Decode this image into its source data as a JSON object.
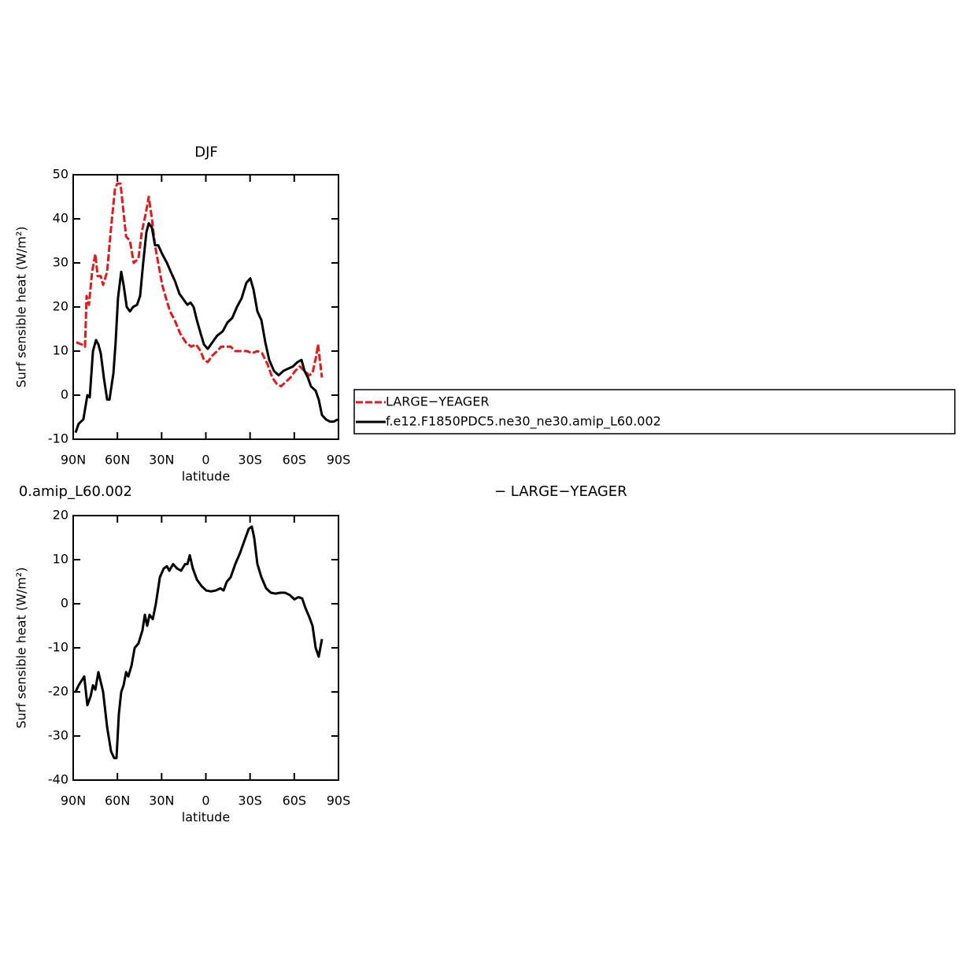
{
  "chart_data": [
    {
      "type": "line",
      "title": "DJF",
      "ylabel": "Surf sensible heat (W/m²)",
      "xlabel": "latitude",
      "xlim": [
        90,
        -90
      ],
      "xticks": [
        {
          "value": 90,
          "label": "90N"
        },
        {
          "value": 60,
          "label": "60N"
        },
        {
          "value": 30,
          "label": "30N"
        },
        0,
        {
          "value": -30,
          "label": "30S"
        },
        {
          "value": -60,
          "label": "60S"
        },
        {
          "value": -90,
          "label": "90S"
        }
      ],
      "ylim": [
        -10,
        50
      ],
      "yticks": [
        -10,
        0,
        10,
        20,
        30,
        40,
        50
      ],
      "series": [
        {
          "name": "LARGE−YEAGER",
          "color": "#e31a1c",
          "style": "dashed",
          "x": [
            87.9,
            84.1,
            82.0,
            80.9,
            79.3,
            77.2,
            75.0,
            73.4,
            71.3,
            69.7,
            67.0,
            64.3,
            61.6,
            60.0,
            57.9,
            55.7,
            54.1,
            51.5,
            48.9,
            45.7,
            43.5,
            40.9,
            38.7,
            36.6,
            34.5,
            32.3,
            29.6,
            27.0,
            24.3,
            21.1,
            17.4,
            13.6,
            9.9,
            6.7,
            3.5,
            1.3,
            -1.3,
            -4.5,
            -7.7,
            -10.4,
            -13.6,
            -16.8,
            -20.0,
            -24.3,
            -28.0,
            -31.2,
            -35.0,
            -38.2,
            -41.9,
            -45.1,
            -48.3,
            -51.0,
            -54.2,
            -57.4,
            -60.6,
            -63.8,
            -67.0,
            -70.2,
            -72.4,
            -75.0,
            -76.1,
            -77.7,
            -78.8
          ],
          "values": [
            12,
            11.5,
            11,
            22.5,
            20.5,
            28,
            32,
            27,
            27,
            25,
            28,
            38,
            47,
            48,
            48,
            41,
            36,
            35,
            30,
            31,
            37,
            41,
            45,
            40,
            34,
            30,
            25,
            22,
            19,
            17,
            14,
            12,
            11,
            11.5,
            10,
            8,
            7.5,
            9,
            10,
            11,
            11,
            11,
            10,
            10,
            10,
            9.5,
            10,
            9.5,
            7,
            4,
            2.5,
            2,
            3,
            4,
            5.5,
            6.5,
            5.5,
            4.5,
            5,
            9,
            11.5,
            7,
            4
          ]
        },
        {
          "name": "f.e12.F1850PDC5.ne30_ne30.amip_L60.002",
          "color": "#000000",
          "style": "solid",
          "x": [
            88.4,
            86.3,
            83.1,
            80.4,
            78.8,
            76.6,
            74.5,
            72.9,
            71.3,
            69.2,
            67.0,
            65.4,
            62.7,
            61.2,
            59.6,
            57.4,
            55.8,
            53.7,
            51.5,
            49.4,
            46.7,
            44.6,
            42.5,
            40.3,
            38.7,
            36.6,
            34.5,
            32.3,
            29.6,
            26.4,
            23.8,
            21.1,
            17.9,
            14.7,
            12.5,
            10.4,
            8.3,
            6.1,
            3.5,
            1.3,
            -1.3,
            -4.5,
            -7.7,
            -11.5,
            -14.7,
            -17.9,
            -21.1,
            -24.3,
            -27.5,
            -30.2,
            -32.3,
            -35.0,
            -37.7,
            -40.3,
            -43.0,
            -46.2,
            -49.4,
            -52.6,
            -55.8,
            -59.0,
            -62.2,
            -64.9,
            -67.0,
            -69.2,
            -71.3,
            -74.5,
            -76.6,
            -78.8,
            -81.5,
            -84.1,
            -86.8,
            -89.5
          ],
          "values": [
            -8.5,
            -6.5,
            -5.5,
            0,
            -0.5,
            10,
            12.5,
            11.5,
            9.5,
            4,
            -1,
            -1,
            5,
            12,
            22,
            28,
            25,
            20,
            19,
            20,
            20.5,
            22.5,
            30,
            37,
            39,
            38,
            34,
            34,
            32,
            30,
            28,
            26,
            23,
            21.5,
            20.5,
            21,
            20,
            17,
            14,
            11.5,
            10.5,
            12,
            13.5,
            14.5,
            16.5,
            17.5,
            20,
            22,
            25.5,
            26.5,
            24,
            19,
            17,
            12,
            8,
            5.5,
            4.5,
            5.5,
            6,
            6.5,
            7.5,
            8,
            5.5,
            4,
            2,
            1,
            -1,
            -4.5,
            -5.5,
            -6,
            -6,
            -5.5
          ]
        }
      ]
    },
    {
      "type": "line",
      "title_parts": [
        "0.amip_L60.002",
        "− LARGE−YEAGER"
      ],
      "ylabel": "Surf sensible heat (W/m²)",
      "xlabel": "latitude",
      "xlim": [
        90,
        -90
      ],
      "xticks": [
        {
          "value": 90,
          "label": "90N"
        },
        {
          "value": 60,
          "label": "60N"
        },
        {
          "value": 30,
          "label": "30N"
        },
        0,
        {
          "value": -30,
          "label": "30S"
        },
        {
          "value": -60,
          "label": "60S"
        },
        {
          "value": -90,
          "label": "90S"
        }
      ],
      "ylim": [
        -40,
        20
      ],
      "yticks": [
        -40,
        -30,
        -20,
        -10,
        0,
        10,
        20
      ],
      "series": [
        {
          "color": "#000000",
          "style": "solid",
          "x": [
            88.4,
            86.3,
            82.5,
            80.4,
            78.2,
            76.6,
            75.0,
            72.9,
            69.7,
            67.0,
            64.3,
            62.2,
            60.6,
            59.0,
            57.4,
            55.8,
            54.1,
            52.6,
            50.4,
            48.3,
            45.7,
            43.0,
            41.4,
            39.8,
            38.2,
            36.0,
            33.9,
            31.2,
            28.6,
            26.4,
            24.8,
            22.2,
            19.5,
            16.8,
            14.1,
            12.5,
            10.9,
            8.8,
            6.1,
            2.9,
            -0.3,
            -3.5,
            -6.7,
            -9.9,
            -12.0,
            -14.2,
            -16.8,
            -20.0,
            -23.2,
            -26.4,
            -29.1,
            -31.2,
            -32.8,
            -35.0,
            -37.7,
            -40.9,
            -44.1,
            -47.3,
            -50.5,
            -53.7,
            -56.9,
            -60.1,
            -62.8,
            -65.4,
            -67.6,
            -70.2,
            -72.4,
            -74.5,
            -76.6,
            -78.8
          ],
          "values": [
            -20,
            -18.5,
            -16.5,
            -23,
            -21,
            -18.5,
            -19.5,
            -15.5,
            -20,
            -28,
            -33.5,
            -35,
            -35,
            -25,
            -20,
            -18.5,
            -15.5,
            -16.5,
            -14,
            -10,
            -9,
            -6,
            -2.5,
            -5,
            -2.5,
            -3.5,
            0,
            6,
            8,
            8.5,
            7.5,
            9,
            8,
            7.5,
            9,
            9,
            11,
            8,
            5.5,
            4,
            3,
            2.8,
            3,
            3.5,
            3,
            5,
            6,
            9,
            11.5,
            14.5,
            17,
            17.5,
            15,
            9,
            6,
            3.5,
            2.5,
            2.3,
            2.5,
            2.5,
            2,
            1,
            1.5,
            1.2,
            -1,
            -3,
            -5,
            -10,
            -12,
            -8
          ]
        }
      ]
    }
  ]
}
